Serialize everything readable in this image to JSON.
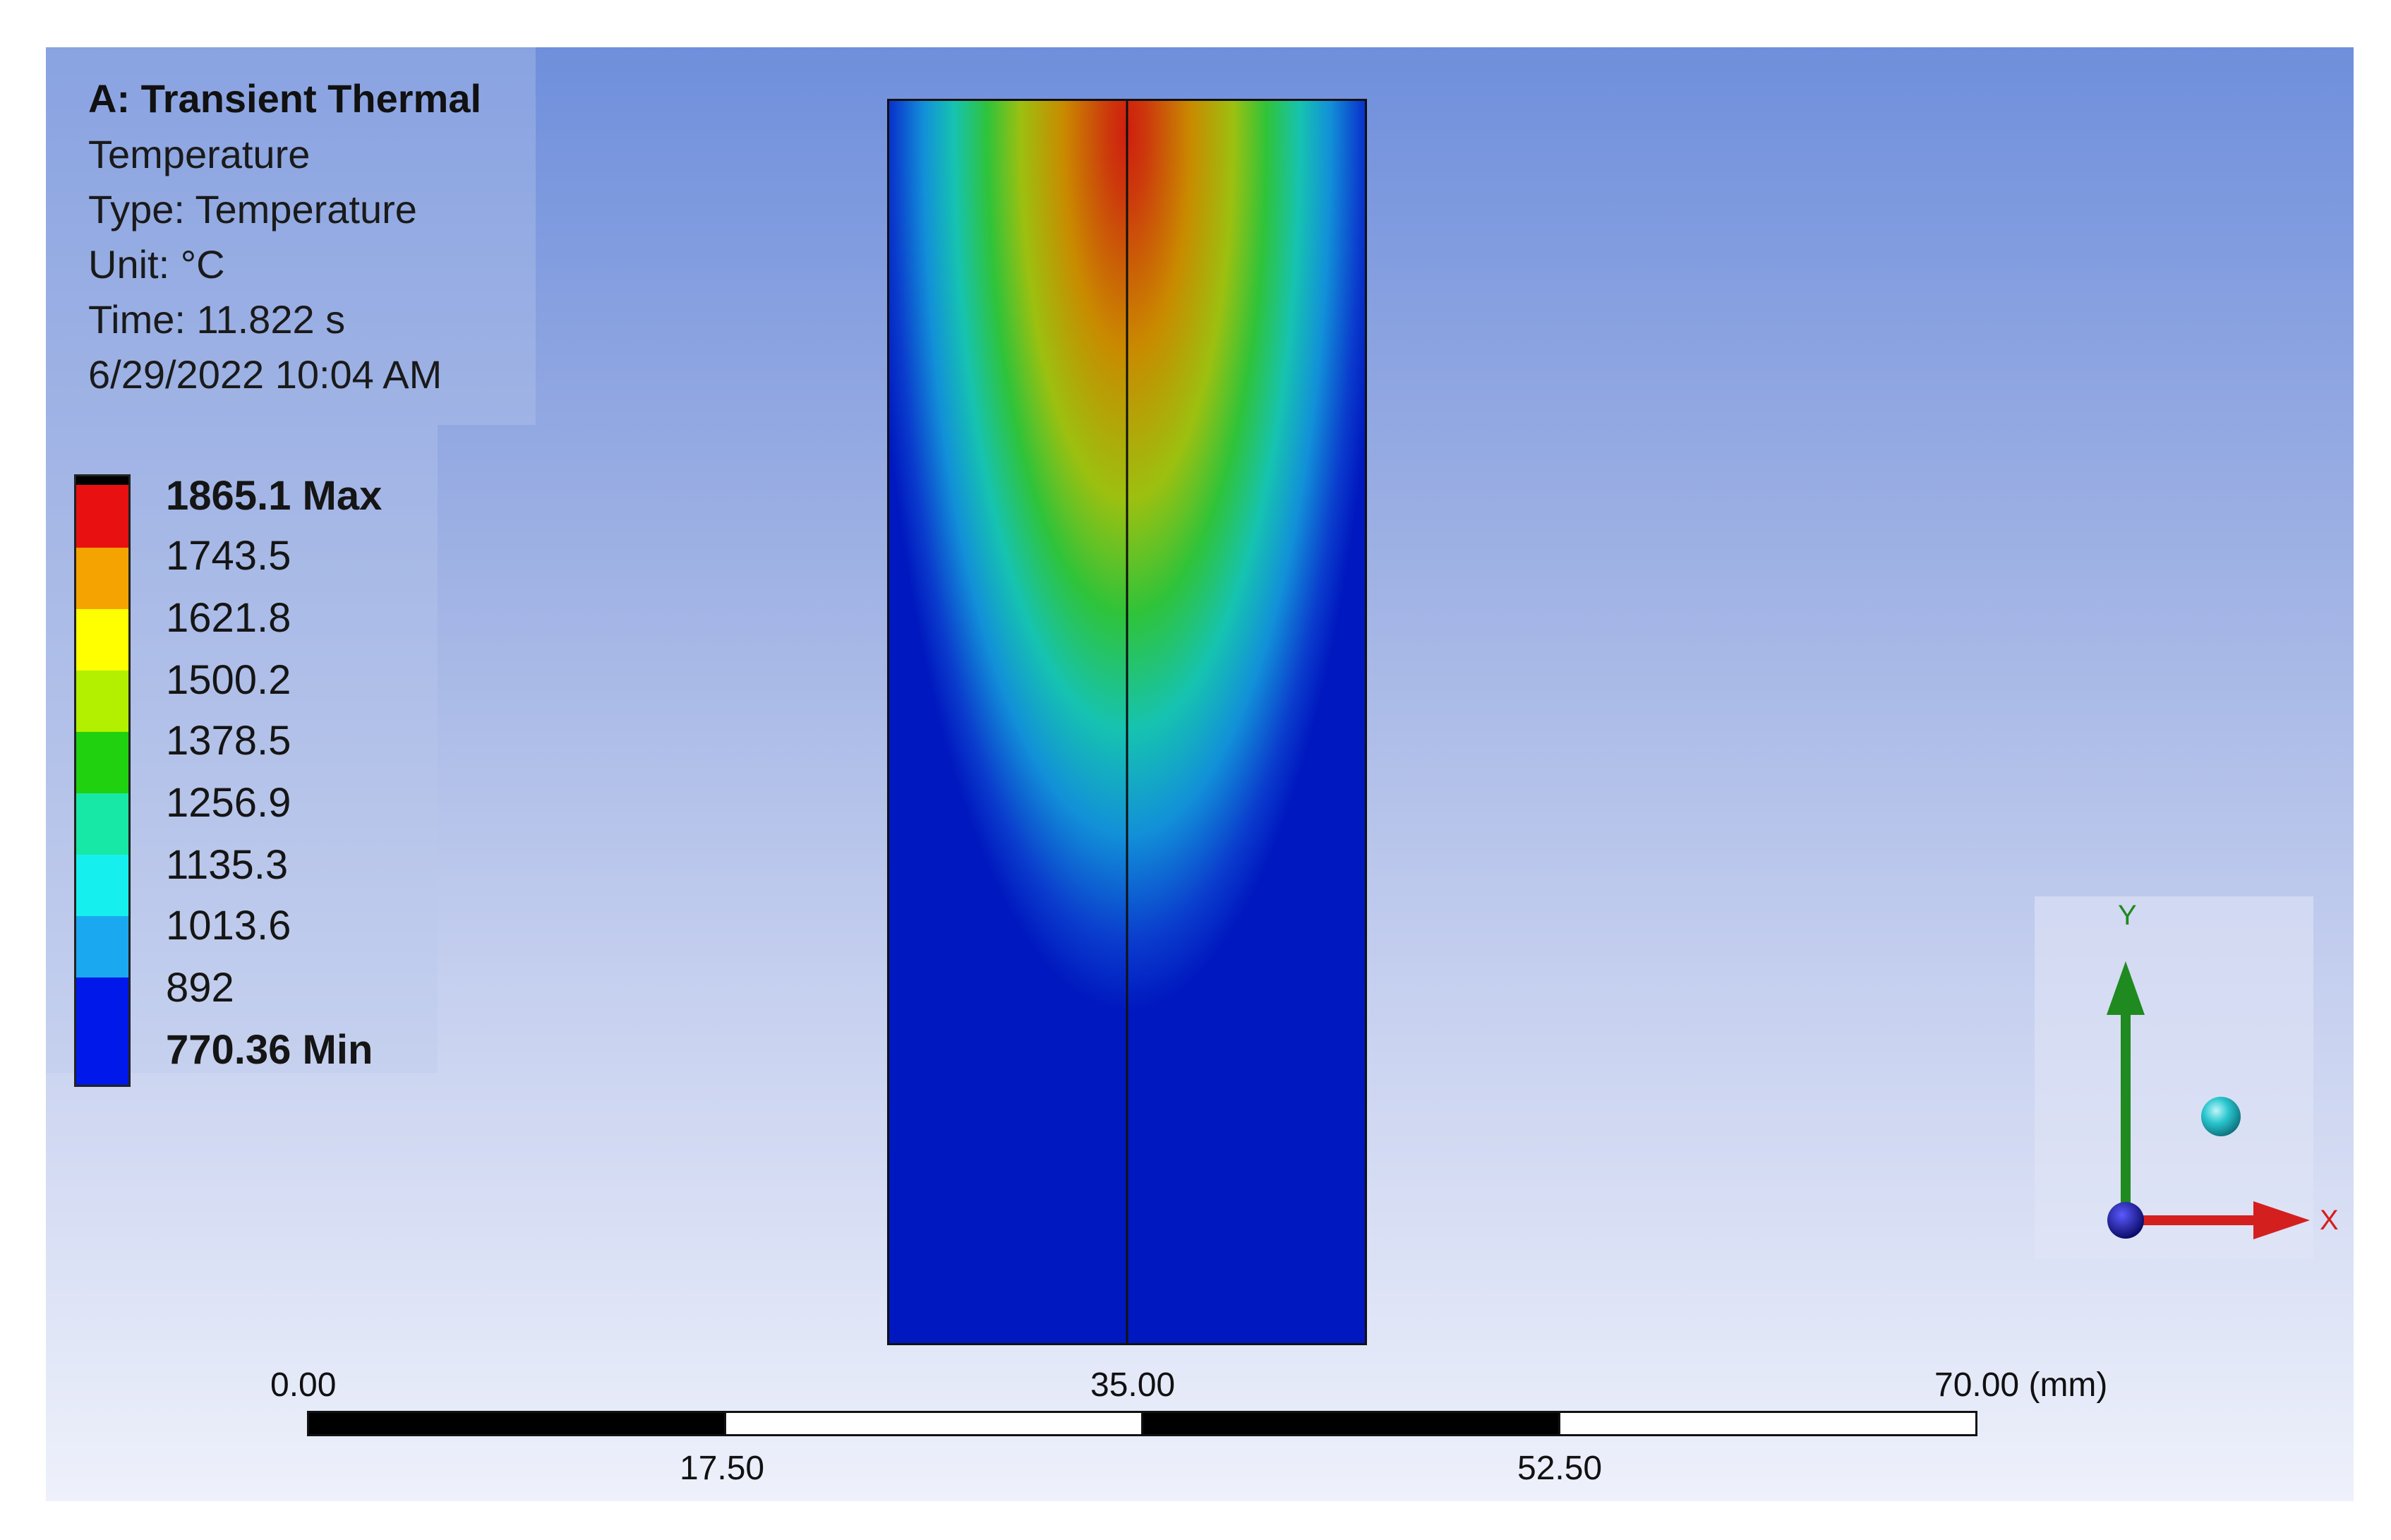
{
  "info": {
    "title": "A: Transient Thermal",
    "result": "Temperature",
    "type": "Type: Temperature",
    "unit": "Unit: °C",
    "time": "Time: 11.822 s",
    "date": "6/29/2022 10:04 AM"
  },
  "legend": {
    "labels": [
      "1865.1 Max",
      "1743.5",
      "1621.8",
      "1500.2",
      "1378.5",
      "1256.9",
      "1135.3",
      "1013.6",
      "892",
      "770.36 Min"
    ],
    "colors": [
      "#000000",
      "#e81010",
      "#f5a300",
      "#ffff00",
      "#b3f000",
      "#1fd10f",
      "#18e8a6",
      "#15f0ee",
      "#1aa9f0",
      "#0018ea"
    ]
  },
  "scale_bar": {
    "top_labels": [
      "0.00",
      "35.00",
      "70.00 (mm)"
    ],
    "bottom_labels": [
      "17.50",
      "52.50"
    ]
  },
  "triad": {
    "y_label": "Y",
    "x_label": "X",
    "y_color": "#1f8a1f",
    "x_color": "#d41f1f",
    "origin_color": "#1010a0",
    "sphere_color": "#2ac6cf"
  },
  "model_colors": {
    "background": "#0018bf",
    "hot": "#d01e0e"
  }
}
